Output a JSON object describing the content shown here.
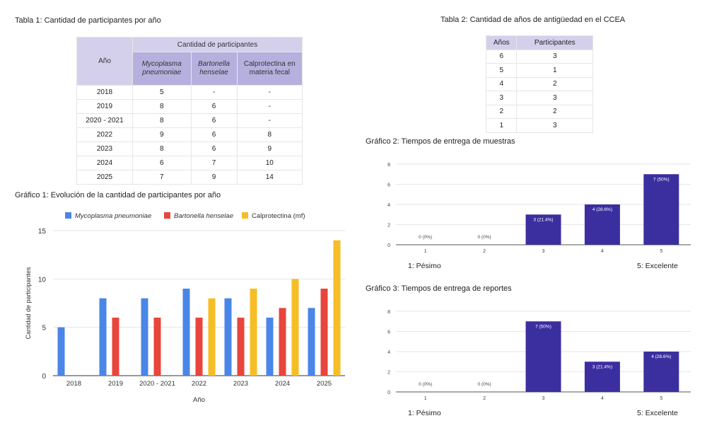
{
  "table1": {
    "caption": "Tabla 1: Cantidad de participantes por año",
    "col_year": "Año",
    "group_header": "Cantidad de participantes",
    "cols": [
      "Mycoplasma pneumoniae",
      "Bartonella henselae",
      "Calprotectina en materia fecal"
    ],
    "rows": [
      [
        "2018",
        "5",
        "-",
        "-"
      ],
      [
        "2019",
        "8",
        "6",
        "-"
      ],
      [
        "2020 - 2021",
        "8",
        "6",
        "-"
      ],
      [
        "2022",
        "9",
        "6",
        "8"
      ],
      [
        "2023",
        "8",
        "6",
        "9"
      ],
      [
        "2024",
        "6",
        "7",
        "10"
      ],
      [
        "2025",
        "7",
        "9",
        "14"
      ]
    ]
  },
  "table2": {
    "caption": "Tabla 2: Cantidad de años de antigüedad en el CCEA",
    "headers": [
      "Años",
      "Participantes"
    ],
    "rows": [
      [
        "6",
        "3"
      ],
      [
        "5",
        "1"
      ],
      [
        "4",
        "2"
      ],
      [
        "3",
        "3"
      ],
      [
        "2",
        "2"
      ],
      [
        "1",
        "3"
      ]
    ]
  },
  "chart_data": [
    {
      "type": "bar",
      "title": "Gráfico 1: Evolución de la cantidad de participantes por año",
      "xlabel": "Año",
      "ylabel": "Cantidad de participantes",
      "ylim": [
        0,
        15
      ],
      "yticks": [
        0,
        5,
        10,
        15
      ],
      "grid": true,
      "legend": "top",
      "categories": [
        "2018",
        "2019",
        "2020 - 2021",
        "2022",
        "2023",
        "2024",
        "2025"
      ],
      "series": [
        {
          "name": "Mycoplasma pneumoniae",
          "color": "#4a86e8",
          "values": [
            5,
            8,
            8,
            9,
            8,
            6,
            7
          ]
        },
        {
          "name": "Bartonella henselae",
          "color": "#e8453c",
          "values": [
            null,
            6,
            6,
            6,
            6,
            7,
            9
          ]
        },
        {
          "name": "Calprotectina (mf)",
          "color": "#f6be26",
          "values": [
            null,
            null,
            null,
            8,
            9,
            10,
            14
          ]
        }
      ]
    },
    {
      "type": "bar",
      "title": "Gráfico 2: Tiempos de entrega de muestras",
      "ylim": [
        0,
        8
      ],
      "yticks": [
        0,
        2,
        4,
        6,
        8
      ],
      "grid": true,
      "categories": [
        "1",
        "2",
        "3",
        "4",
        "5"
      ],
      "values": [
        0,
        0,
        3,
        4,
        7
      ],
      "labels": [
        "0 (0%)",
        "0 (0%)",
        "3 (21.4%)",
        "4 (28.6%)",
        "7 (50%)"
      ],
      "color": "#3b2fa0",
      "scale_left": "1: Pésimo",
      "scale_right": "5: Excelente"
    },
    {
      "type": "bar",
      "title": "Gráfico 3: Tiempos de entrega de reportes",
      "ylim": [
        0,
        8
      ],
      "yticks": [
        0,
        2,
        4,
        6,
        8
      ],
      "grid": true,
      "categories": [
        "1",
        "2",
        "3",
        "4",
        "5"
      ],
      "values": [
        0,
        0,
        7,
        3,
        4
      ],
      "labels": [
        "0 (0%)",
        "0 (0%)",
        "7 (50%)",
        "3 (21.4%)",
        "4 (28.6%)"
      ],
      "color": "#3b2fa0",
      "scale_left": "1: Pésimo",
      "scale_right": "5: Excelente"
    }
  ]
}
